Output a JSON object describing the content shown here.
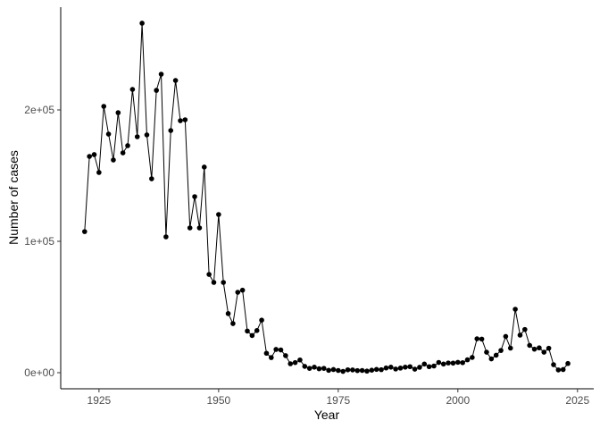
{
  "chart_data": {
    "type": "line",
    "x_label": "Year",
    "y_label": "Number of cases",
    "x": [
      1922,
      1923,
      1924,
      1925,
      1926,
      1927,
      1928,
      1929,
      1930,
      1931,
      1932,
      1933,
      1934,
      1935,
      1936,
      1937,
      1938,
      1939,
      1940,
      1941,
      1942,
      1943,
      1944,
      1945,
      1946,
      1947,
      1948,
      1949,
      1950,
      1951,
      1952,
      1953,
      1954,
      1955,
      1956,
      1957,
      1958,
      1959,
      1960,
      1961,
      1962,
      1963,
      1964,
      1965,
      1966,
      1967,
      1968,
      1969,
      1970,
      1971,
      1972,
      1973,
      1974,
      1975,
      1976,
      1977,
      1978,
      1979,
      1980,
      1981,
      1982,
      1983,
      1984,
      1985,
      1986,
      1987,
      1988,
      1989,
      1990,
      1991,
      1992,
      1993,
      1994,
      1995,
      1996,
      1997,
      1998,
      1999,
      2000,
      2001,
      2002,
      2003,
      2004,
      2005,
      2006,
      2007,
      2008,
      2009,
      2010,
      2011,
      2012,
      2013,
      2014,
      2015,
      2016,
      2017,
      2018,
      2019,
      2020,
      2021,
      2022,
      2023
    ],
    "values": [
      107400,
      164600,
      166000,
      152400,
      202700,
      181600,
      161900,
      197900,
      167300,
      172800,
      215600,
      179600,
      266000,
      181000,
      147600,
      214900,
      227200,
      103400,
      184300,
      222400,
      191800,
      192500,
      110200,
      134000,
      110200,
      156500,
      74800,
      68700,
      120400,
      68700,
      45000,
      37400,
      61200,
      62800,
      31700,
      28300,
      32100,
      40000,
      14800,
      11500,
      17700,
      17300,
      13000,
      6800,
      7700,
      9700,
      4800,
      3300,
      4200,
      3000,
      3300,
      1800,
      2400,
      1700,
      1000,
      2200,
      2100,
      1600,
      1700,
      1200,
      1900,
      2500,
      2300,
      3600,
      4200,
      2800,
      3500,
      4200,
      4600,
      2700,
      4100,
      6600,
      4600,
      5100,
      7800,
      6600,
      7400,
      7300,
      7900,
      7600,
      9800,
      11600,
      25800,
      25600,
      15600,
      10500,
      13300,
      16900,
      27600,
      18700,
      48300,
      28600,
      32900,
      20800,
      17900,
      18900,
      15600,
      18600,
      6100,
      2100,
      2400,
      7000
    ],
    "color": "#000000",
    "xlim": [
      1917,
      2028.4
    ],
    "xticks": [
      1925,
      1950,
      1975,
      2000,
      2025
    ],
    "ylim": [
      -12245,
      278231
    ],
    "yticks": [
      {
        "value": 0,
        "label": "0e+00"
      },
      {
        "value": 100000,
        "label": "1e+05"
      },
      {
        "value": 200000,
        "label": "2e+05"
      }
    ]
  }
}
